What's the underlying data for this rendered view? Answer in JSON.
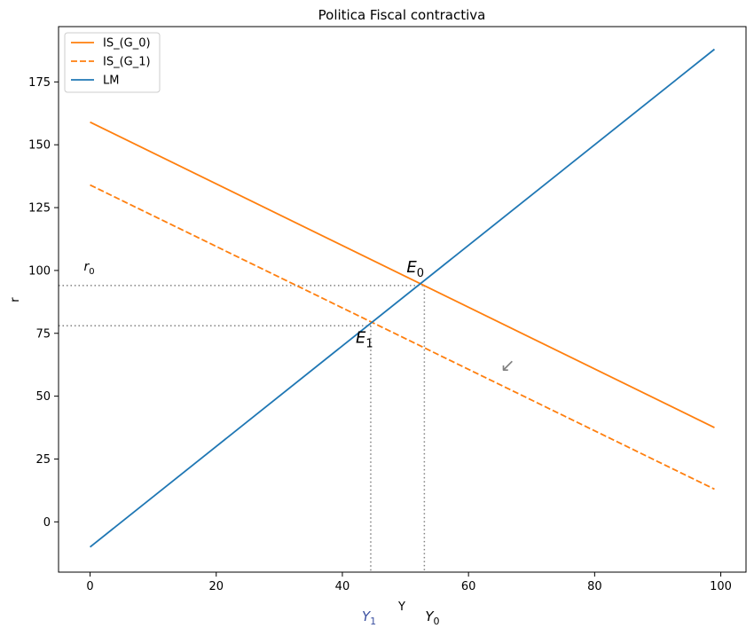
{
  "chart_data": {
    "type": "line",
    "title": "Politica Fiscal contractiva",
    "xlabel": "Y",
    "ylabel": "r",
    "xlim": [
      -5,
      104
    ],
    "ylim": [
      -20,
      197
    ],
    "x_ticks": [
      0,
      20,
      40,
      60,
      80,
      100
    ],
    "y_ticks": [
      0,
      25,
      50,
      75,
      100,
      125,
      150,
      175
    ],
    "grid": false,
    "legend_position": "top-left",
    "colors": {
      "is": "#ff7f0e",
      "lm": "#1f77b4",
      "guide": "#808080",
      "y1_label": "#3a4fa0"
    },
    "series": [
      {
        "name": "IS_(G_0)",
        "style": "solid",
        "color": "#ff7f0e",
        "x": [
          0,
          99
        ],
        "y": [
          159,
          37.5
        ]
      },
      {
        "name": "IS_(G_1)",
        "style": "dashed",
        "color": "#ff7f0e",
        "x": [
          0,
          99
        ],
        "y": [
          134,
          13
        ]
      },
      {
        "name": "LM",
        "style": "solid",
        "color": "#1f77b4",
        "x": [
          0,
          99
        ],
        "y": [
          -10,
          188
        ]
      }
    ],
    "equilibria": [
      {
        "x": 53,
        "y": 94
      },
      {
        "x": 44.5,
        "y": 78
      }
    ],
    "annotations": {
      "r0": {
        "base": "r",
        "sub": "0"
      },
      "e0": {
        "base": "E",
        "sub": "0"
      },
      "e1": {
        "base": "E",
        "sub": "1"
      },
      "y0": {
        "base": "Y",
        "sub": "0"
      },
      "y1": {
        "base": "Y",
        "sub": "1"
      },
      "arrow": "↙"
    }
  }
}
